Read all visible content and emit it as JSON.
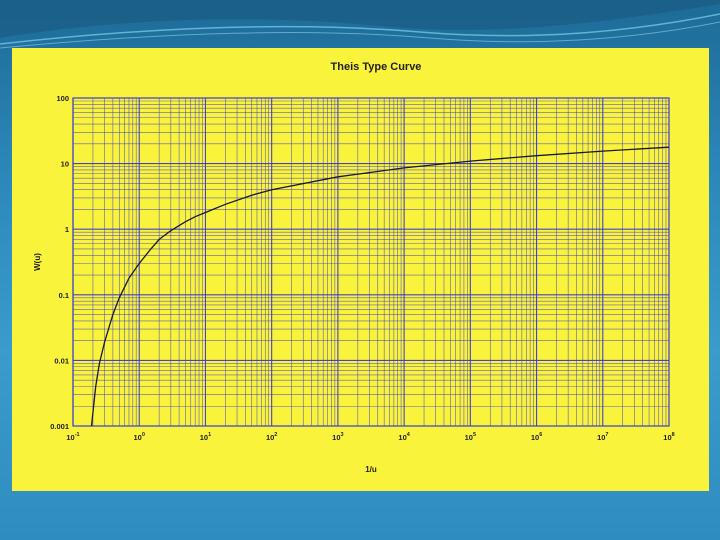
{
  "colors": {
    "background": "#2b86b8",
    "panel": "#f9f33b",
    "grid": "#3a3ad6",
    "curve": "#1a1a2a"
  },
  "chart_data": {
    "type": "line",
    "title": "Theis Type Curve",
    "xlabel": "1/u",
    "ylabel": "W(u)",
    "xscale": "log",
    "yscale": "log",
    "xlim": [
      0.1,
      100000000
    ],
    "ylim": [
      0.001,
      100
    ],
    "grid": true,
    "x_ticks": [
      {
        "base": "10",
        "exp": "-1"
      },
      {
        "base": "10",
        "exp": "0"
      },
      {
        "base": "10",
        "exp": "1"
      },
      {
        "base": "10",
        "exp": "2"
      },
      {
        "base": "10",
        "exp": "3"
      },
      {
        "base": "10",
        "exp": "4"
      },
      {
        "base": "10",
        "exp": "5"
      },
      {
        "base": "10",
        "exp": "6"
      },
      {
        "base": "10",
        "exp": "7"
      },
      {
        "base": "10",
        "exp": "8"
      }
    ],
    "y_ticks": [
      "0.001",
      "0.01",
      "0.1",
      "1",
      "10",
      "100"
    ],
    "series": [
      {
        "x": [
          0.19,
          0.22,
          0.25,
          0.3,
          0.4,
          0.5,
          0.7,
          1,
          1.5,
          2,
          3,
          5,
          7,
          10,
          20,
          50,
          100,
          1000,
          10000,
          100000,
          1000000,
          10000000,
          100000000
        ],
        "y": [
          0.001,
          0.004,
          0.009,
          0.019,
          0.05,
          0.09,
          0.18,
          0.3,
          0.5,
          0.7,
          0.95,
          1.3,
          1.55,
          1.8,
          2.4,
          3.3,
          4,
          6.3,
          8.6,
          10.9,
          13.2,
          15.5,
          17.8
        ]
      }
    ]
  }
}
